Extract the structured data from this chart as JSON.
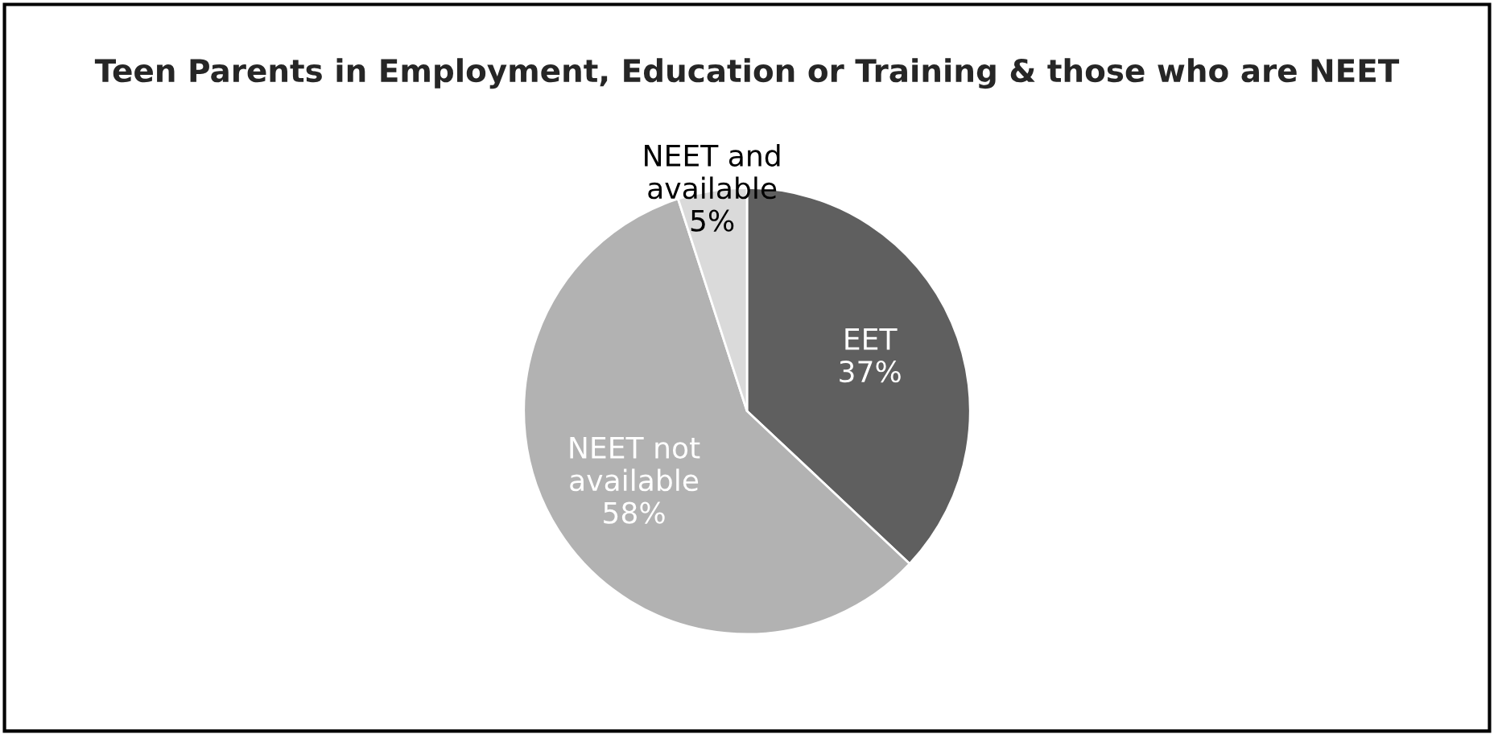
{
  "chart_data": {
    "type": "pie",
    "title": "Teen Parents in Employment, Education or Training & those who are NEET",
    "categories": [
      "EET",
      "NEET not available",
      "NEET and available"
    ],
    "values": [
      37,
      58,
      5
    ],
    "colors": [
      "#5f5f5f",
      "#b2b2b2",
      "#dadada"
    ],
    "value_labels": [
      "37%",
      "58%",
      "5%"
    ],
    "legend": false
  }
}
